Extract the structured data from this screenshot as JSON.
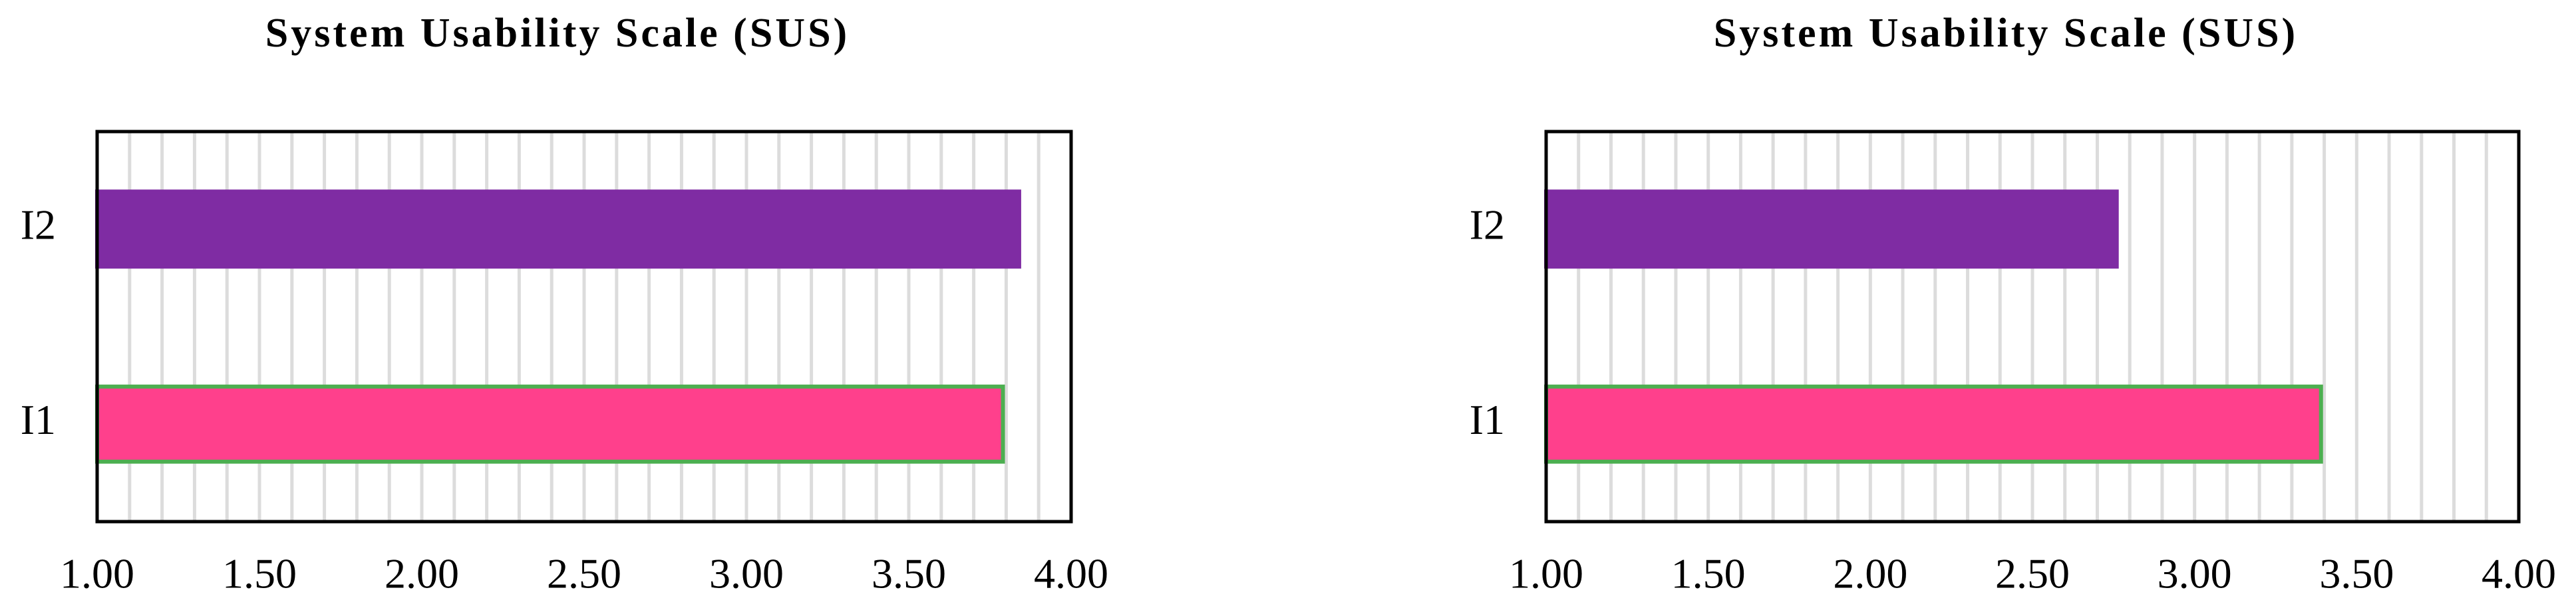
{
  "chart_data": [
    {
      "type": "barh",
      "title": "System Usability Scale (SUS)",
      "categories": [
        "I1",
        "I2"
      ],
      "values": [
        3.79,
        3.84
      ],
      "colors": [
        "#ff408c",
        "#7f2ca3"
      ],
      "edgecolors": [
        "#4caf50",
        "#7f2ca3"
      ],
      "xlim": [
        1,
        4
      ],
      "xticks": [
        {
          "value": 1,
          "label": "1.00"
        },
        {
          "value": 1.5,
          "label": "1.50"
        },
        {
          "value": 2,
          "label": "2.00"
        },
        {
          "value": 2.5,
          "label": "2.50"
        },
        {
          "value": 3,
          "label": "3.00"
        },
        {
          "value": 3.5,
          "label": "3.50"
        },
        {
          "value": 4,
          "label": "4.00"
        }
      ],
      "grid": true,
      "minor_step": 0.1
    },
    {
      "type": "barh",
      "title": "System Usability Scale (SUS)",
      "categories": [
        "I1",
        "I2"
      ],
      "values": [
        3.39,
        2.76
      ],
      "colors": [
        "#ff408c",
        "#7f2ca3"
      ],
      "edgecolors": [
        "#4caf50",
        "#7f2ca3"
      ],
      "xlim": [
        1,
        4
      ],
      "xticks": [
        {
          "value": 1,
          "label": "1.00"
        },
        {
          "value": 1.5,
          "label": "1.50"
        },
        {
          "value": 2,
          "label": "2.00"
        },
        {
          "value": 2.5,
          "label": "2.50"
        },
        {
          "value": 3,
          "label": "3.00"
        },
        {
          "value": 3.5,
          "label": "3.50"
        },
        {
          "value": 4,
          "label": "4.00"
        }
      ],
      "grid": true,
      "minor_step": 0.1
    }
  ]
}
